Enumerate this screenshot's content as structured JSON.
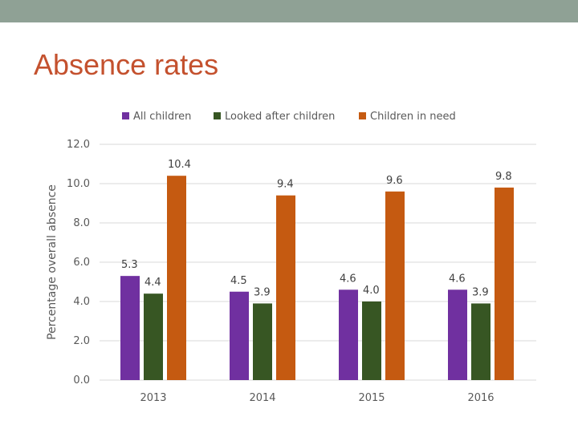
{
  "slide": {
    "title": "Absence rates"
  },
  "colors": {
    "top_bar": "#8fa195",
    "title": "#c4512e"
  },
  "chart_data": {
    "type": "bar",
    "title": "",
    "xlabel": "",
    "ylabel": "Percentage overall absence",
    "categories": [
      "2013",
      "2014",
      "2015",
      "2016"
    ],
    "series": [
      {
        "name": "All children",
        "color": "#7030a0",
        "values": [
          5.3,
          4.5,
          4.6,
          4.6
        ],
        "labels": [
          "5.3",
          "4.5",
          "4.6",
          "4.6"
        ]
      },
      {
        "name": "Looked after children",
        "color": "#375623",
        "values": [
          4.4,
          3.9,
          4.0,
          3.9
        ],
        "labels": [
          "4.4",
          "3.9",
          "4.0",
          "3.9"
        ]
      },
      {
        "name": "Children in need",
        "color": "#c55a11",
        "values": [
          10.4,
          9.4,
          9.6,
          9.8
        ],
        "labels": [
          "10.4",
          "9.4",
          "9.6",
          "9.8"
        ]
      }
    ],
    "ylim": [
      0,
      12
    ],
    "yticks": [
      "0.0",
      "2.0",
      "4.0",
      "6.0",
      "8.0",
      "10.0",
      "12.0"
    ],
    "grid": true,
    "legend": "top"
  }
}
